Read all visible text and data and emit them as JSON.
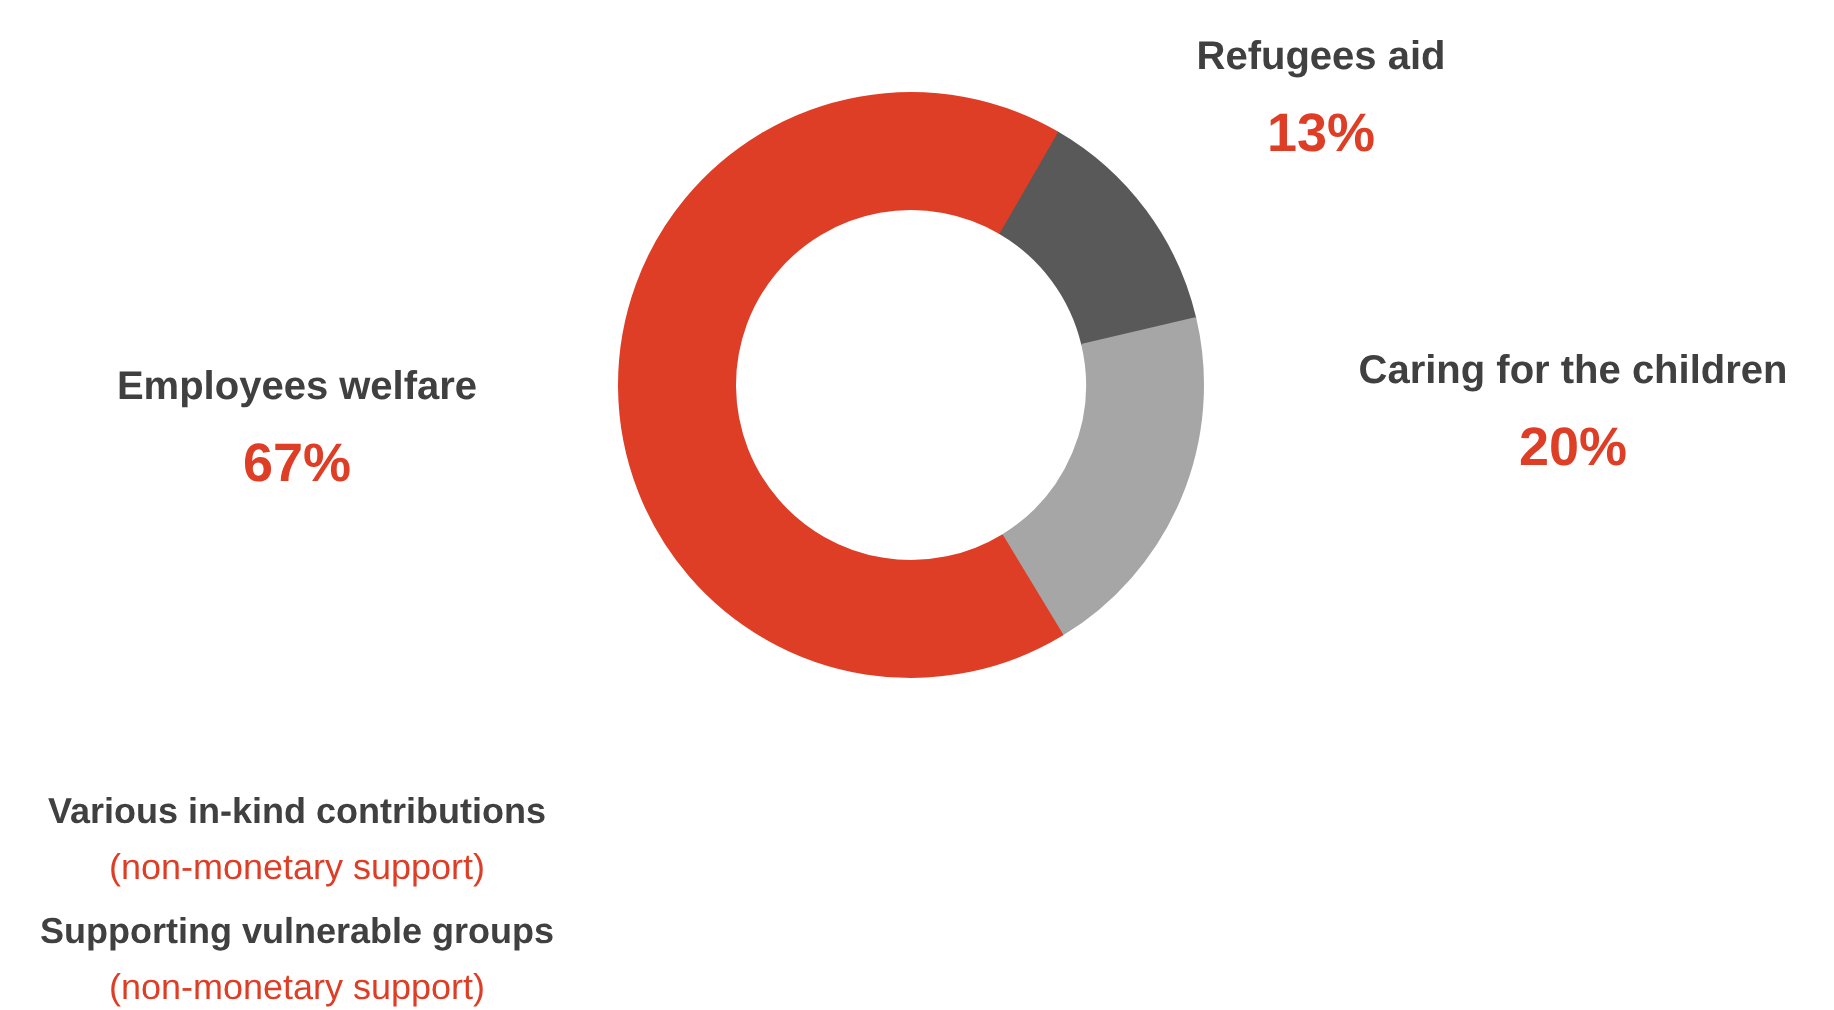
{
  "chart_data": {
    "type": "donut",
    "categories": [
      "Refugees aid",
      "Caring for the children",
      "Employees welfare"
    ],
    "values": [
      13,
      20,
      67
    ],
    "value_labels": [
      "13%",
      "20%",
      "67%"
    ],
    "colors": [
      "#595959",
      "#a6a6a6",
      "#df3e26"
    ],
    "annotations": [
      "Various in-kind contributions",
      "(non-monetary support)",
      "Supporting vulnerable groups",
      "(non-monetary support)"
    ]
  }
}
